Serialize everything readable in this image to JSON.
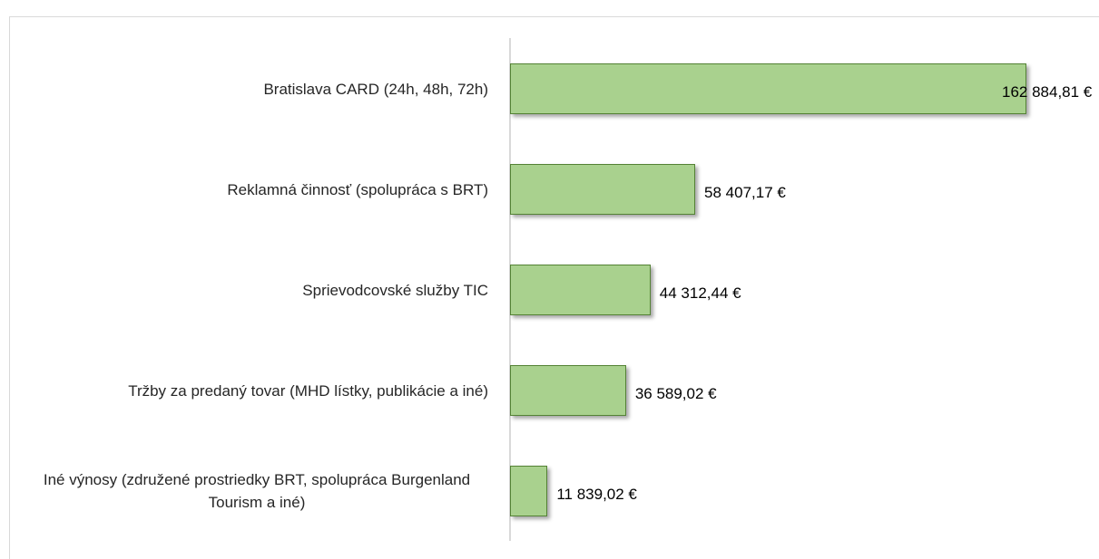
{
  "chart_data": {
    "type": "bar",
    "orientation": "horizontal",
    "categories": [
      "Bratislava CARD (24h, 48h, 72h)",
      "Reklamná činnosť (spolupráca s BRT)",
      "Sprievodcovské služby TIC",
      "Tržby za predaný tovar (MHD lístky, publikácie a iné)",
      "Iné výnosy (združené prostriedky BRT, spolupráca Burgenland Tourism a iné)"
    ],
    "values": [
      162884.81,
      58407.17,
      44312.44,
      36589.02,
      11839.02
    ],
    "value_labels": [
      "162 884,81 €",
      "58 407,17 €",
      "44 312,44 €",
      "36 589,02 €",
      "11 839,02 €"
    ],
    "color": "#a9d18e"
  }
}
